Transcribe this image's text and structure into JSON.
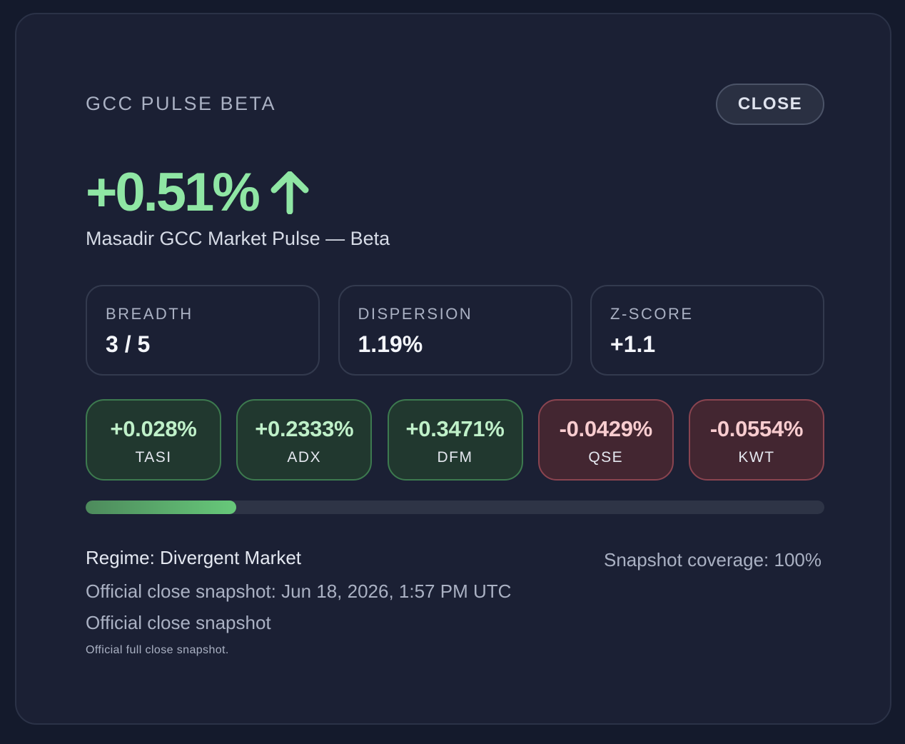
{
  "header": {
    "kicker": "GCC PULSE BETA",
    "close_label": "CLOSE"
  },
  "headline": {
    "value": "+0.51%",
    "direction_icon": "arrow-up-icon",
    "subtitle": "Masadir GCC Market Pulse — Beta"
  },
  "metrics": [
    {
      "label": "BREADTH",
      "value": "3 / 5"
    },
    {
      "label": "DISPERSION",
      "value": "1.19%"
    },
    {
      "label": "Z-SCORE",
      "value": "+1.1"
    }
  ],
  "tickers": [
    {
      "value": "+0.028%",
      "name": "TASI",
      "direction": "up"
    },
    {
      "value": "+0.2333%",
      "name": "ADX",
      "direction": "up"
    },
    {
      "value": "+0.3471%",
      "name": "DFM",
      "direction": "up"
    },
    {
      "value": "-0.0429%",
      "name": "QSE",
      "direction": "down"
    },
    {
      "value": "-0.0554%",
      "name": "KWT",
      "direction": "down"
    }
  ],
  "progress": {
    "fill_fraction": 0.204
  },
  "footer": {
    "regime": "Regime: Divergent Market",
    "coverage": "Snapshot coverage: 100%",
    "snapshot_time": "Official close snapshot: Jun 18, 2026, 1:57 PM UTC",
    "snapshot_label": "Official close snapshot",
    "snapshot_note": "Official full close snapshot."
  },
  "colors": {
    "positive": "#8fe6a4",
    "negative": "#f8cccf",
    "background": "#141a2c",
    "card": "#1b2034"
  }
}
